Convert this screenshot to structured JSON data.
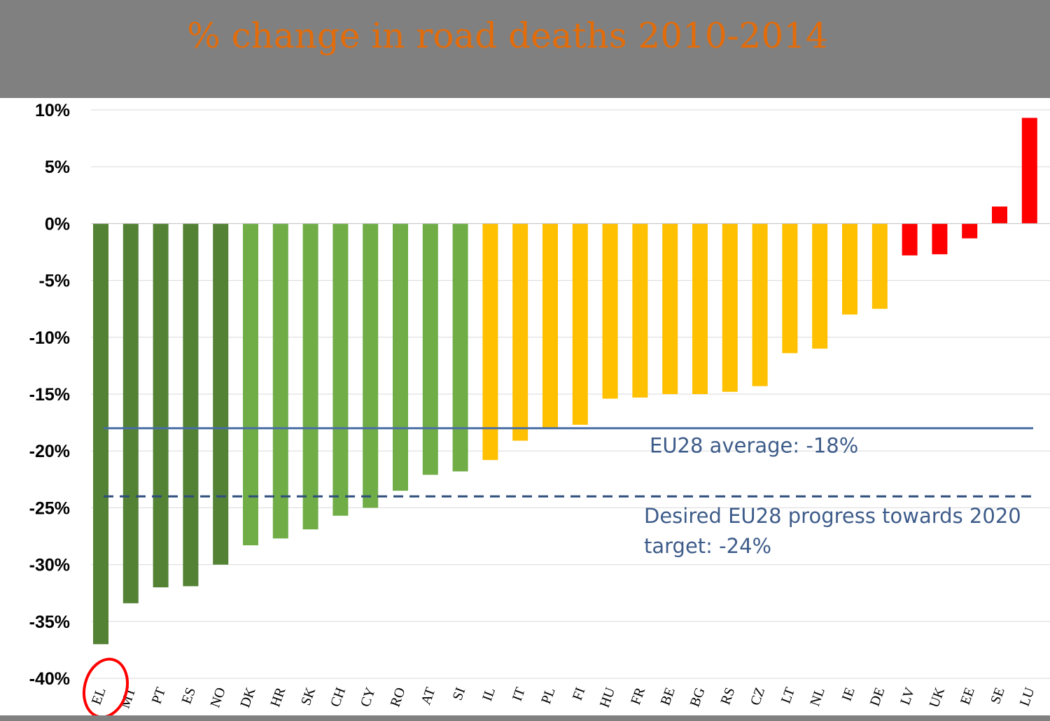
{
  "chart_data": {
    "type": "bar",
    "title": "% change in road deaths 2010-2014",
    "categories": [
      "EL",
      "MT",
      "PT",
      "ES",
      "NO",
      "DK",
      "HR",
      "SK",
      "CH",
      "CY",
      "RO",
      "AT",
      "SI",
      "IL",
      "IT",
      "PL",
      "FI",
      "HU",
      "FR",
      "BE",
      "BG",
      "RS",
      "CZ",
      "LT",
      "NL",
      "IE",
      "DE",
      "LV",
      "UK",
      "EE",
      "SE",
      "LU"
    ],
    "values": [
      -37,
      -33.4,
      -32,
      -31.9,
      -30,
      -28.3,
      -27.7,
      -26.9,
      -25.7,
      -25,
      -23.5,
      -22.1,
      -21.8,
      -20.8,
      -19.1,
      -18,
      -17.7,
      -15.4,
      -15.3,
      -15,
      -15,
      -14.8,
      -14.3,
      -11.4,
      -11,
      -8,
      -7.5,
      -2.8,
      -2.7,
      -1.3,
      1.5,
      9.3
    ],
    "colors": [
      "#548235",
      "#548235",
      "#548235",
      "#548235",
      "#548235",
      "#70ad47",
      "#70ad47",
      "#70ad47",
      "#70ad47",
      "#70ad47",
      "#70ad47",
      "#70ad47",
      "#70ad47",
      "#ffc000",
      "#ffc000",
      "#ffc000",
      "#ffc000",
      "#ffc000",
      "#ffc000",
      "#ffc000",
      "#ffc000",
      "#ffc000",
      "#ffc000",
      "#ffc000",
      "#ffc000",
      "#ffc000",
      "#ffc000",
      "#ff0000",
      "#ff0000",
      "#ff0000",
      "#ff0000",
      "#ff0000"
    ],
    "ylim": [
      -40,
      10
    ],
    "yticks": [
      10,
      5,
      0,
      -5,
      -10,
      -15,
      -20,
      -25,
      -30,
      -35,
      -40
    ],
    "ytick_labels": [
      "10%",
      "5%",
      "0%",
      "-5%",
      "-10%",
      "-15%",
      "-20%",
      "-25%",
      "-30%",
      "-35%",
      "-40%"
    ],
    "grid": true,
    "reference_lines": [
      {
        "value": -18,
        "style": "solid",
        "color": "#4a6fa5",
        "label": "EU28 average: -18%"
      },
      {
        "value": -24,
        "style": "dashed",
        "color": "#2e4d7c",
        "label_lines": [
          "Desired EU28 progress towards 2020",
          "target: -24%"
        ]
      }
    ],
    "highlight": {
      "category": "EL",
      "shape": "circle",
      "color": "#ff0000"
    }
  }
}
